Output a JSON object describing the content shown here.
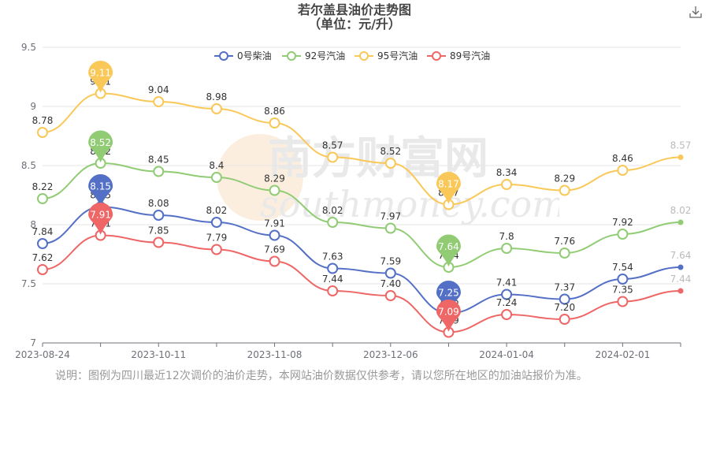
{
  "title_line1": "若尔盖县油价走势图",
  "title_line2": "（单位：元/升）",
  "note": "说明：图例为四川最近12次调价的油价走势，本网站油价数据仅供参考，请以您所在地区的加油站报价为准。",
  "watermark_text": "南方财富网",
  "watermark_latin": "southmoney.com",
  "icons": {
    "download": "download-icon"
  },
  "chart_data": {
    "type": "line",
    "title": "若尔盖县油价走势图 （单位：元/升）",
    "x_tick_labels": [
      "2023-08-24",
      "2023-10-11",
      "2023-11-08",
      "2023-12-06",
      "2024-01-04",
      "2024-02-01"
    ],
    "x_tick_index": [
      0,
      2,
      4,
      6,
      8,
      10
    ],
    "point_count": 12,
    "ylim": [
      7,
      9.5
    ],
    "y_ticks": [
      7,
      7.5,
      8,
      8.5,
      9,
      9.5
    ],
    "legend_position": "top-center",
    "grid": "horizontal",
    "series": [
      {
        "name": "0号柴油",
        "color": "#5470c6",
        "values": [
          7.84,
          8.15,
          8.08,
          8.02,
          7.91,
          7.63,
          7.59,
          7.25,
          7.41,
          7.37,
          7.54,
          7.64
        ],
        "labels": [
          "7.84",
          "8.15",
          "8.08",
          "8.02",
          "7.91",
          "7.63",
          "7.59",
          "7.25",
          "7.41",
          "7.37",
          "7.54",
          "7.64"
        ],
        "max_label": "8.15",
        "min_label": "7.25"
      },
      {
        "name": "92号汽油",
        "color": "#91cc75",
        "values": [
          8.22,
          8.52,
          8.45,
          8.4,
          8.29,
          8.02,
          7.97,
          7.64,
          7.8,
          7.76,
          7.92,
          8.02
        ],
        "labels": [
          "8.22",
          "8.52",
          "8.45",
          "8.4",
          "8.29",
          "8.02",
          "7.97",
          "7.64",
          "7.8",
          "7.76",
          "7.92",
          "8.02"
        ],
        "max_label": "8.52",
        "min_label": "7.64"
      },
      {
        "name": "95号汽油",
        "color": "#fac858",
        "values": [
          8.78,
          9.11,
          9.04,
          8.98,
          8.86,
          8.57,
          8.52,
          8.17,
          8.34,
          8.29,
          8.46,
          8.57
        ],
        "labels": [
          "8.78",
          "9.11",
          "9.04",
          "8.98",
          "8.86",
          "8.57",
          "8.52",
          "8.17",
          "8.34",
          "8.29",
          "8.46",
          "8.57"
        ],
        "max_label": "9.11",
        "min_label": "8.17"
      },
      {
        "name": "89号汽油",
        "color": "#ee6666",
        "values": [
          7.62,
          7.91,
          7.85,
          7.79,
          7.69,
          7.44,
          7.4,
          7.09,
          7.24,
          7.2,
          7.35,
          7.44
        ],
        "labels": [
          "7.62",
          "7.91",
          "7.85",
          "7.79",
          "7.69",
          "7.44",
          "7.40",
          "7.09",
          "7.24",
          "7.20",
          "7.35",
          "7.44"
        ],
        "max_label": "7.91",
        "min_label": "7.09"
      }
    ]
  }
}
